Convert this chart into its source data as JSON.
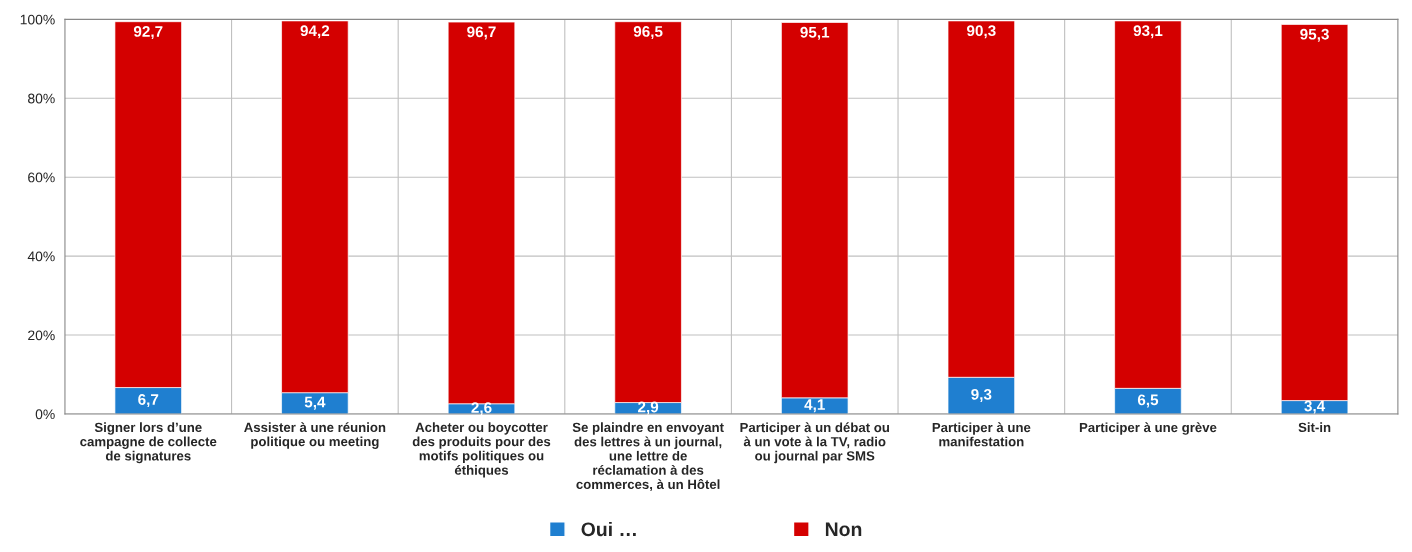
{
  "chart_data": {
    "type": "bar",
    "stacked": true,
    "categories": [
      "Signer lors d’une\ncampagne de collecte\nde signatures",
      "Assister à une réunion\npolitique ou meeting",
      "Acheter ou boycotter\ndes produits pour des\nmotifs politiques ou\néthiques",
      "Se plaindre en envoyant\ndes lettres à un journal,\nune lettre de\nréclamation à des\ncommerces, à un Hôtel",
      "Participer à un débat ou\nà un vote à la TV, radio\nou journal par SMS",
      "Participer à une\nmanifestation",
      "Participer à une grève",
      "Sit-in"
    ],
    "series": [
      {
        "name": "Oui …",
        "color": "#1f7fd0",
        "values": [
          6.7,
          5.4,
          2.6,
          2.9,
          4.1,
          9.3,
          6.5,
          3.4
        ],
        "value_labels": [
          "6,7",
          "5,4",
          "2,6",
          "2,9",
          "4,1",
          "9,3",
          "6,5",
          "3,4"
        ]
      },
      {
        "name": "Non",
        "color": "#d40000",
        "values": [
          92.7,
          94.2,
          96.7,
          96.5,
          95.1,
          90.3,
          93.1,
          95.3
        ],
        "value_labels": [
          "92,7",
          "94,2",
          "96,7",
          "96,5",
          "95,1",
          "90,3",
          "93,1",
          "95,3"
        ]
      }
    ],
    "ylim": [
      0,
      100
    ],
    "yticks": [
      {
        "value": 0,
        "label": "0%"
      },
      {
        "value": 20,
        "label": "20%"
      },
      {
        "value": 40,
        "label": "40%"
      },
      {
        "value": 60,
        "label": "60%"
      },
      {
        "value": 80,
        "label": "80%"
      },
      {
        "value": 100,
        "label": "100%"
      }
    ],
    "grid": true,
    "legend": "bottom"
  }
}
